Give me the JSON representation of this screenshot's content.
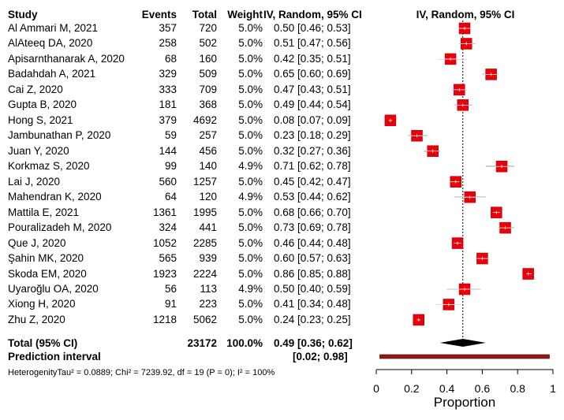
{
  "headers": {
    "study": "Study",
    "events": "Events",
    "total": "Total",
    "weight": "Weight",
    "ci": "IV, Random, 95% CI",
    "plot": "IV, Random, 95% CI"
  },
  "rows": [
    {
      "study": "Al Ammari M, 2021",
      "events": "357",
      "total": "720",
      "weight": "5.0%",
      "ci": "0.50 [0.46; 0.53]"
    },
    {
      "study": "AlAteeq DA, 2020",
      "events": "258",
      "total": "502",
      "weight": "5.0%",
      "ci": "0.51 [0.47; 0.56]"
    },
    {
      "study": "Apisarnthanarak A, 2020",
      "events": "68",
      "total": "160",
      "weight": "5.0%",
      "ci": "0.42 [0.35; 0.51]"
    },
    {
      "study": "Badahdah A, 2021",
      "events": "329",
      "total": "509",
      "weight": "5.0%",
      "ci": "0.65 [0.60; 0.69]"
    },
    {
      "study": "Cai Z, 2020",
      "events": "333",
      "total": "709",
      "weight": "5.0%",
      "ci": "0.47 [0.43; 0.51]"
    },
    {
      "study": "Gupta B, 2020",
      "events": "181",
      "total": "368",
      "weight": "5.0%",
      "ci": "0.49 [0.44; 0.54]"
    },
    {
      "study": "Hong S, 2021",
      "events": "379",
      "total": "4692",
      "weight": "5.0%",
      "ci": "0.08 [0.07; 0.09]"
    },
    {
      "study": "Jambunathan P, 2020",
      "events": "59",
      "total": "257",
      "weight": "5.0%",
      "ci": "0.23 [0.18; 0.29]"
    },
    {
      "study": "Juan Y, 2020",
      "events": "144",
      "total": "456",
      "weight": "5.0%",
      "ci": "0.32 [0.27; 0.36]"
    },
    {
      "study": "Korkmaz S, 2020",
      "events": "99",
      "total": "140",
      "weight": "4.9%",
      "ci": "0.71 [0.62; 0.78]"
    },
    {
      "study": "Lai J, 2020",
      "events": "560",
      "total": "1257",
      "weight": "5.0%",
      "ci": "0.45 [0.42; 0.47]"
    },
    {
      "study": "Mahendran K, 2020",
      "events": "64",
      "total": "120",
      "weight": "4.9%",
      "ci": "0.53 [0.44; 0.62]"
    },
    {
      "study": "Mattila E, 2021",
      "events": "1361",
      "total": "1995",
      "weight": "5.0%",
      "ci": "0.68 [0.66; 0.70]"
    },
    {
      "study": "Pouralizadeh M, 2020",
      "events": "324",
      "total": "441",
      "weight": "5.0%",
      "ci": "0.73 [0.69; 0.78]"
    },
    {
      "study": "Que J, 2020",
      "events": "1052",
      "total": "2285",
      "weight": "5.0%",
      "ci": "0.46 [0.44; 0.48]"
    },
    {
      "study": "Şahin MK, 2020",
      "events": "565",
      "total": "939",
      "weight": "5.0%",
      "ci": "0.60 [0.57; 0.63]"
    },
    {
      "study": "Skoda EM, 2020",
      "events": "1923",
      "total": "2224",
      "weight": "5.0%",
      "ci": "0.86 [0.85; 0.88]"
    },
    {
      "study": "Uyaroğlu OA, 2020",
      "events": "56",
      "total": "113",
      "weight": "4.9%",
      "ci": "0.50 [0.40; 0.59]"
    },
    {
      "study": "Xiong H, 2020",
      "events": "91",
      "total": "223",
      "weight": "5.0%",
      "ci": "0.41 [0.34; 0.48]"
    },
    {
      "study": "Zhu Z, 2020",
      "events": "1218",
      "total": "5062",
      "weight": "5.0%",
      "ci": "0.24 [0.23; 0.25]"
    }
  ],
  "total": {
    "label": "Total (95% CI)",
    "total": "23172",
    "weight": "100.0%",
    "ci": "0.49 [0.36; 0.62]"
  },
  "prediction": {
    "label": "Prediction interval",
    "ci": "[0.02; 0.98]"
  },
  "heterogeneity": "HeterogenityTau² = 0.0889; Chi² = 7239.92, df = 19 (P = 0); I² = 100%",
  "colors": {
    "box": "#e8000b",
    "pred_bar": "#8b1a1a",
    "ref_line": "#000000"
  },
  "chart_data": {
    "type": "forest",
    "xlabel": "Proportion",
    "xlim": [
      0,
      1
    ],
    "xticks": [
      "0",
      "0.2",
      "0.4",
      "0.6",
      "0.8",
      "1"
    ],
    "reference_line": 0.49,
    "studies": [
      {
        "est": 0.5,
        "lo": 0.46,
        "hi": 0.53
      },
      {
        "est": 0.51,
        "lo": 0.47,
        "hi": 0.56
      },
      {
        "est": 0.42,
        "lo": 0.35,
        "hi": 0.51
      },
      {
        "est": 0.65,
        "lo": 0.6,
        "hi": 0.69
      },
      {
        "est": 0.47,
        "lo": 0.43,
        "hi": 0.51
      },
      {
        "est": 0.49,
        "lo": 0.44,
        "hi": 0.54
      },
      {
        "est": 0.08,
        "lo": 0.07,
        "hi": 0.09
      },
      {
        "est": 0.23,
        "lo": 0.18,
        "hi": 0.29
      },
      {
        "est": 0.32,
        "lo": 0.27,
        "hi": 0.36
      },
      {
        "est": 0.71,
        "lo": 0.62,
        "hi": 0.78
      },
      {
        "est": 0.45,
        "lo": 0.42,
        "hi": 0.47
      },
      {
        "est": 0.53,
        "lo": 0.44,
        "hi": 0.62
      },
      {
        "est": 0.68,
        "lo": 0.66,
        "hi": 0.7
      },
      {
        "est": 0.73,
        "lo": 0.69,
        "hi": 0.78
      },
      {
        "est": 0.46,
        "lo": 0.44,
        "hi": 0.48
      },
      {
        "est": 0.6,
        "lo": 0.57,
        "hi": 0.63
      },
      {
        "est": 0.86,
        "lo": 0.85,
        "hi": 0.88
      },
      {
        "est": 0.5,
        "lo": 0.4,
        "hi": 0.59
      },
      {
        "est": 0.41,
        "lo": 0.34,
        "hi": 0.48
      },
      {
        "est": 0.24,
        "lo": 0.23,
        "hi": 0.25
      }
    ],
    "summary": {
      "est": 0.49,
      "lo": 0.36,
      "hi": 0.62
    },
    "prediction_interval": {
      "lo": 0.02,
      "hi": 0.98
    }
  }
}
